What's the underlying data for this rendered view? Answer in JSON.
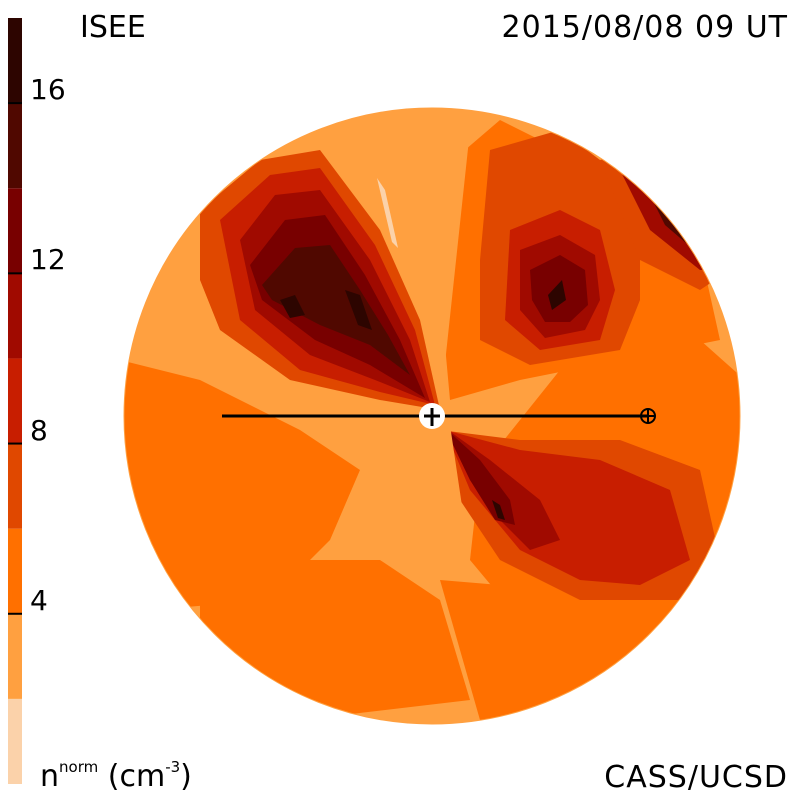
{
  "header": {
    "left_label": "ISEE",
    "date_label": "2015/08/08 09 UT",
    "credit_label": "CASS/UCSD"
  },
  "colorbar": {
    "unit_base": "n",
    "unit_sup": "norm",
    "unit_paren_open": " (cm",
    "unit_exp": "-3",
    "unit_paren_close": ")",
    "levels": [
      {
        "from": 0,
        "to": 2,
        "color": "#fbd2aa"
      },
      {
        "from": 2,
        "to": 4,
        "color": "#ffa040"
      },
      {
        "from": 4,
        "to": 6,
        "color": "#ff7000"
      },
      {
        "from": 6,
        "to": 8,
        "color": "#e04800"
      },
      {
        "from": 8,
        "to": 10,
        "color": "#c81e00"
      },
      {
        "from": 10,
        "to": 12,
        "color": "#a00a00"
      },
      {
        "from": 12,
        "to": 14,
        "color": "#780000"
      },
      {
        "from": 14,
        "to": 16,
        "color": "#500800"
      },
      {
        "from": 16,
        "to": 18,
        "color": "#2d0500"
      }
    ]
  },
  "chart_data": {
    "type": "heatmap",
    "title": "",
    "colorbar_ticks": [
      4,
      8,
      12,
      16
    ],
    "colorbar_range": [
      0,
      18
    ],
    "markers": [
      "sun-marker",
      "earth-marker"
    ]
  }
}
